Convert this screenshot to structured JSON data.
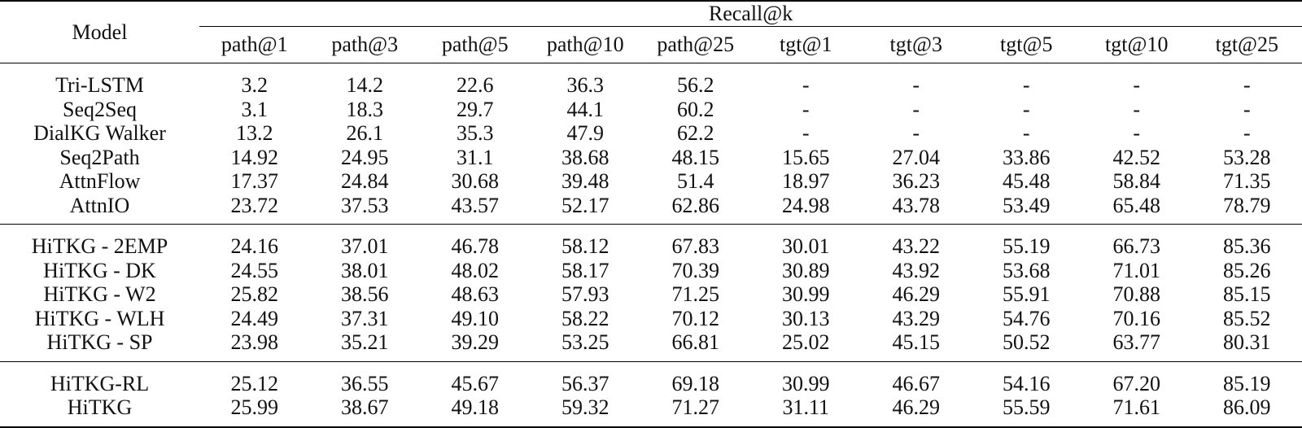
{
  "table": {
    "model_header": "Model",
    "group_header": "Recall@k",
    "columns": [
      "path@1",
      "path@3",
      "path@5",
      "path@10",
      "path@25",
      "tgt@1",
      "tgt@3",
      "tgt@5",
      "tgt@10",
      "tgt@25"
    ],
    "groups": [
      [
        {
          "model": "Tri-LSTM",
          "values": [
            "3.2",
            "14.2",
            "22.6",
            "36.3",
            "56.2",
            "-",
            "-",
            "-",
            "-",
            "-"
          ],
          "bold": []
        },
        {
          "model": "Seq2Seq",
          "values": [
            "3.1",
            "18.3",
            "29.7",
            "44.1",
            "60.2",
            "-",
            "-",
            "-",
            "-",
            "-"
          ],
          "bold": []
        },
        {
          "model": "DialKG Walker",
          "values": [
            "13.2",
            "26.1",
            "35.3",
            "47.9",
            "62.2",
            "-",
            "-",
            "-",
            "-",
            "-"
          ],
          "bold": []
        },
        {
          "model": "Seq2Path",
          "values": [
            "14.92",
            "24.95",
            "31.1",
            "38.68",
            "48.15",
            "15.65",
            "27.04",
            "33.86",
            "42.52",
            "53.28"
          ],
          "bold": []
        },
        {
          "model": "AttnFlow",
          "values": [
            "17.37",
            "24.84",
            "30.68",
            "39.48",
            "51.4",
            "18.97",
            "36.23",
            "45.48",
            "58.84",
            "71.35"
          ],
          "bold": []
        },
        {
          "model": "AttnIO",
          "values": [
            "23.72",
            "37.53",
            "43.57",
            "52.17",
            "62.86",
            "24.98",
            "43.78",
            "53.49",
            "65.48",
            "78.79"
          ],
          "bold": []
        }
      ],
      [
        {
          "model": "HiTKG - 2EMP",
          "values": [
            "24.16",
            "37.01",
            "46.78",
            "58.12",
            "67.83",
            "30.01",
            "43.22",
            "55.19",
            "66.73",
            "85.36"
          ],
          "bold": []
        },
        {
          "model": "HiTKG - DK",
          "values": [
            "24.55",
            "38.01",
            "48.02",
            "58.17",
            "70.39",
            "30.89",
            "43.92",
            "53.68",
            "71.01",
            "85.26"
          ],
          "bold": []
        },
        {
          "model": "HiTKG - W2",
          "values": [
            "25.82",
            "38.56",
            "48.63",
            "57.93",
            "71.25",
            "30.99",
            "46.29",
            "55.91",
            "70.88",
            "85.15"
          ],
          "bold": [
            7
          ]
        },
        {
          "model": "HiTKG - WLH",
          "values": [
            "24.49",
            "37.31",
            "49.10",
            "58.22",
            "70.12",
            "30.13",
            "43.29",
            "54.76",
            "70.16",
            "85.52"
          ],
          "bold": []
        },
        {
          "model": "HiTKG - SP",
          "values": [
            "23.98",
            "35.21",
            "39.29",
            "53.25",
            "66.81",
            "25.02",
            "45.15",
            "50.52",
            "63.77",
            "80.31"
          ],
          "bold": []
        }
      ],
      [
        {
          "model": "HiTKG-RL",
          "values": [
            "25.12",
            "36.55",
            "45.67",
            "56.37",
            "69.18",
            "30.99",
            "46.67",
            "54.16",
            "67.20",
            "85.19"
          ],
          "bold": [
            6
          ]
        },
        {
          "model": "HiTKG",
          "values": [
            "25.99",
            "38.67",
            "49.18",
            "59.32",
            "71.27",
            "31.11",
            "46.29",
            "55.59",
            "71.61",
            "86.09"
          ],
          "bold": [
            0,
            1,
            2,
            3,
            4,
            5,
            8,
            9
          ]
        }
      ]
    ]
  }
}
